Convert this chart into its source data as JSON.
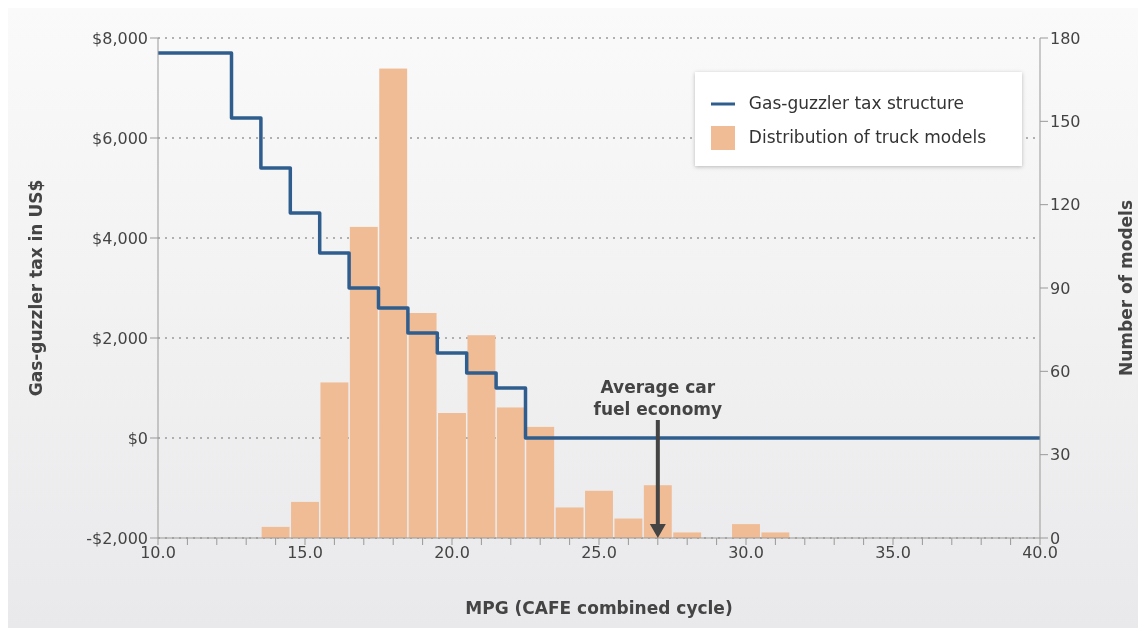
{
  "chart_data": {
    "type": "histogram",
    "xlabel": "MPG (CAFE combined cycle)",
    "ylabel": "Gas-guzzler tax in US$",
    "y2label": "Number of models",
    "xlim": [
      10,
      40
    ],
    "xticks": [
      {
        "value": 10,
        "label": "10.0"
      },
      {
        "value": 11,
        "label": null
      },
      {
        "value": 12,
        "label": null
      },
      {
        "value": 13,
        "label": null
      },
      {
        "value": 14,
        "label": null
      },
      {
        "value": 15,
        "label": "15.0"
      },
      {
        "value": 16,
        "label": null
      },
      {
        "value": 17,
        "label": null
      },
      {
        "value": 18,
        "label": null
      },
      {
        "value": 19,
        "label": null
      },
      {
        "value": 20,
        "label": "20.0"
      },
      {
        "value": 21,
        "label": null
      },
      {
        "value": 22,
        "label": null
      },
      {
        "value": 23,
        "label": null
      },
      {
        "value": 24,
        "label": null
      },
      {
        "value": 25,
        "label": "25.0"
      },
      {
        "value": 26,
        "label": null
      },
      {
        "value": 27,
        "label": null
      },
      {
        "value": 28,
        "label": null
      },
      {
        "value": 29,
        "label": null
      },
      {
        "value": 30,
        "label": "30.0"
      },
      {
        "value": 31,
        "label": null
      },
      {
        "value": 32,
        "label": null
      },
      {
        "value": 33,
        "label": null
      },
      {
        "value": 34,
        "label": null
      },
      {
        "value": 35,
        "label": "35.0"
      },
      {
        "value": 36,
        "label": null
      },
      {
        "value": 37,
        "label": null
      },
      {
        "value": 38,
        "label": null
      },
      {
        "value": 39,
        "label": null
      },
      {
        "value": 40,
        "label": "40.0"
      }
    ],
    "ylim": [
      -2000,
      8000
    ],
    "yticks": [
      {
        "value": -2000,
        "label": "-$2,000"
      },
      {
        "value": 0,
        "label": "$0"
      },
      {
        "value": 2000,
        "label": "$2,000"
      },
      {
        "value": 4000,
        "label": "$4,000"
      },
      {
        "value": 6000,
        "label": "$6,000"
      },
      {
        "value": 8000,
        "label": "$8,000"
      }
    ],
    "y2lim": [
      0,
      180
    ],
    "y2ticks": [
      0,
      30,
      60,
      90,
      120,
      150,
      180
    ],
    "grid": "y",
    "legend": "top right",
    "series": [
      {
        "name": "Gas-guzzler tax structure",
        "type": "step",
        "color": "#2f5d8e",
        "x": [
          10,
          12.5,
          13.5,
          14.5,
          15.5,
          16.5,
          17.5,
          18.5,
          19.5,
          20.5,
          21.5,
          22.5,
          40
        ],
        "values": [
          7700,
          6400,
          5400,
          4500,
          3700,
          3000,
          2600,
          2100,
          1700,
          1300,
          1000,
          0,
          0
        ]
      },
      {
        "name": "Distribution of truck models",
        "type": "histogram",
        "axis": "y2",
        "color": "#efbc96",
        "bins": [
          13.5,
          14.5,
          15.5,
          16.5,
          17.5,
          18.5,
          19.5,
          20.5,
          21.5,
          22.5,
          23.5,
          24.5,
          25.5,
          26.5,
          27.5,
          28.5,
          29.5,
          30.5,
          31.5
        ],
        "values": [
          4,
          13,
          56,
          112,
          169,
          81,
          45,
          73,
          47,
          40,
          11,
          17,
          7,
          19,
          2,
          0,
          5,
          2
        ]
      }
    ],
    "annotations": [
      "Average car fuel economy"
    ]
  }
}
